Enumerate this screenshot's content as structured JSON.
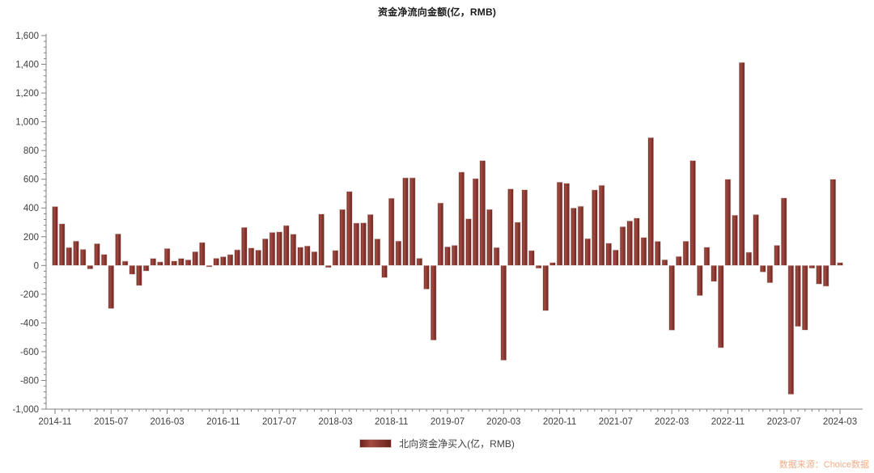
{
  "page": {
    "title": "资金净流向金额(亿，RMB)",
    "footer": "数据来源：Choice数据"
  },
  "legend": {
    "label": "北向资金净买入(亿，RMB)"
  },
  "colors": {
    "bar_dark": "#6B211C",
    "bar_light": "#A14B42",
    "bar_mid": "#8B352F",
    "bar_border": "#D8CCC8",
    "axis": "#808080",
    "tick_label": "#404040",
    "title_text": "#1A1A1A",
    "footer_text": "#F2AD88"
  },
  "chart_data": {
    "type": "bar",
    "title": "资金净流向金额(亿，RMB)",
    "series_name": "北向资金净买入(亿，RMB)",
    "xlabel": "",
    "ylabel": "",
    "ylim": [
      -1000,
      1600
    ],
    "y_tick_step": 200,
    "y_minor_step": 40,
    "grid": false,
    "legend_position": "bottom",
    "y_tick_labels": [
      "1,600",
      "1,400",
      "1,200",
      "1,000",
      "800",
      "600",
      "400",
      "200",
      "0",
      "-200",
      "-400",
      "-600",
      "-800",
      "-1,000"
    ],
    "x_tick_every": 8,
    "x_tick_labels": [
      "2014-11",
      "2015-07",
      "2016-03",
      "2016-11",
      "2017-07",
      "2018-03",
      "2018-11",
      "2019-07",
      "2020-03",
      "2020-11",
      "2021-07",
      "2022-03",
      "2022-11",
      "2023-07",
      "2024-03"
    ],
    "categories": [
      "2014-11",
      "2014-12",
      "2015-01",
      "2015-02",
      "2015-03",
      "2015-04",
      "2015-05",
      "2015-06",
      "2015-07",
      "2015-08",
      "2015-09",
      "2015-10",
      "2015-11",
      "2015-12",
      "2016-01",
      "2016-02",
      "2016-03",
      "2016-04",
      "2016-05",
      "2016-06",
      "2016-07",
      "2016-08",
      "2016-09",
      "2016-10",
      "2016-11",
      "2016-12",
      "2017-01",
      "2017-02",
      "2017-03",
      "2017-04",
      "2017-05",
      "2017-06",
      "2017-07",
      "2017-08",
      "2017-09",
      "2017-10",
      "2017-11",
      "2017-12",
      "2018-01",
      "2018-02",
      "2018-03",
      "2018-04",
      "2018-05",
      "2018-06",
      "2018-07",
      "2018-08",
      "2018-09",
      "2018-10",
      "2018-11",
      "2018-12",
      "2019-01",
      "2019-02",
      "2019-03",
      "2019-04",
      "2019-05",
      "2019-06",
      "2019-07",
      "2019-08",
      "2019-09",
      "2019-10",
      "2019-11",
      "2019-12",
      "2020-01",
      "2020-02",
      "2020-03",
      "2020-04",
      "2020-05",
      "2020-06",
      "2020-07",
      "2020-08",
      "2020-09",
      "2020-10",
      "2020-11",
      "2020-12",
      "2021-01",
      "2021-02",
      "2021-03",
      "2021-04",
      "2021-05",
      "2021-06",
      "2021-07",
      "2021-08",
      "2021-09",
      "2021-10",
      "2021-11",
      "2021-12",
      "2022-01",
      "2022-02",
      "2022-03",
      "2022-04",
      "2022-05",
      "2022-06",
      "2022-07",
      "2022-08",
      "2022-09",
      "2022-10",
      "2022-11",
      "2022-12",
      "2023-01",
      "2023-02",
      "2023-03",
      "2023-04",
      "2023-05",
      "2023-06",
      "2023-07",
      "2023-08",
      "2023-09",
      "2023-10",
      "2023-11",
      "2023-12",
      "2024-01",
      "2024-02",
      "2024-03"
    ],
    "values": [
      410,
      290,
      125,
      170,
      112,
      -25,
      152,
      77,
      -300,
      220,
      30,
      -62,
      -140,
      -39,
      49,
      25,
      118,
      31,
      49,
      39,
      96,
      160,
      -10,
      50,
      61,
      76,
      109,
      265,
      122,
      107,
      186,
      230,
      234,
      278,
      218,
      127,
      136,
      96,
      358,
      -15,
      105,
      390,
      515,
      295,
      297,
      355,
      185,
      -85,
      468,
      170,
      610,
      610,
      50,
      -165,
      -520,
      435,
      130,
      140,
      650,
      325,
      605,
      730,
      390,
      125,
      -660,
      533,
      301,
      527,
      104,
      -20,
      -315,
      20,
      580,
      572,
      400,
      412,
      187,
      526,
      558,
      155,
      108,
      270,
      310,
      330,
      195,
      890,
      168,
      40,
      -451,
      63,
      169,
      730,
      -210,
      127,
      -112,
      -573,
      600,
      350,
      1413,
      92,
      354,
      -46,
      -121,
      140,
      470,
      -897,
      -425,
      -450,
      -20,
      -130,
      -145,
      600,
      20
    ]
  }
}
